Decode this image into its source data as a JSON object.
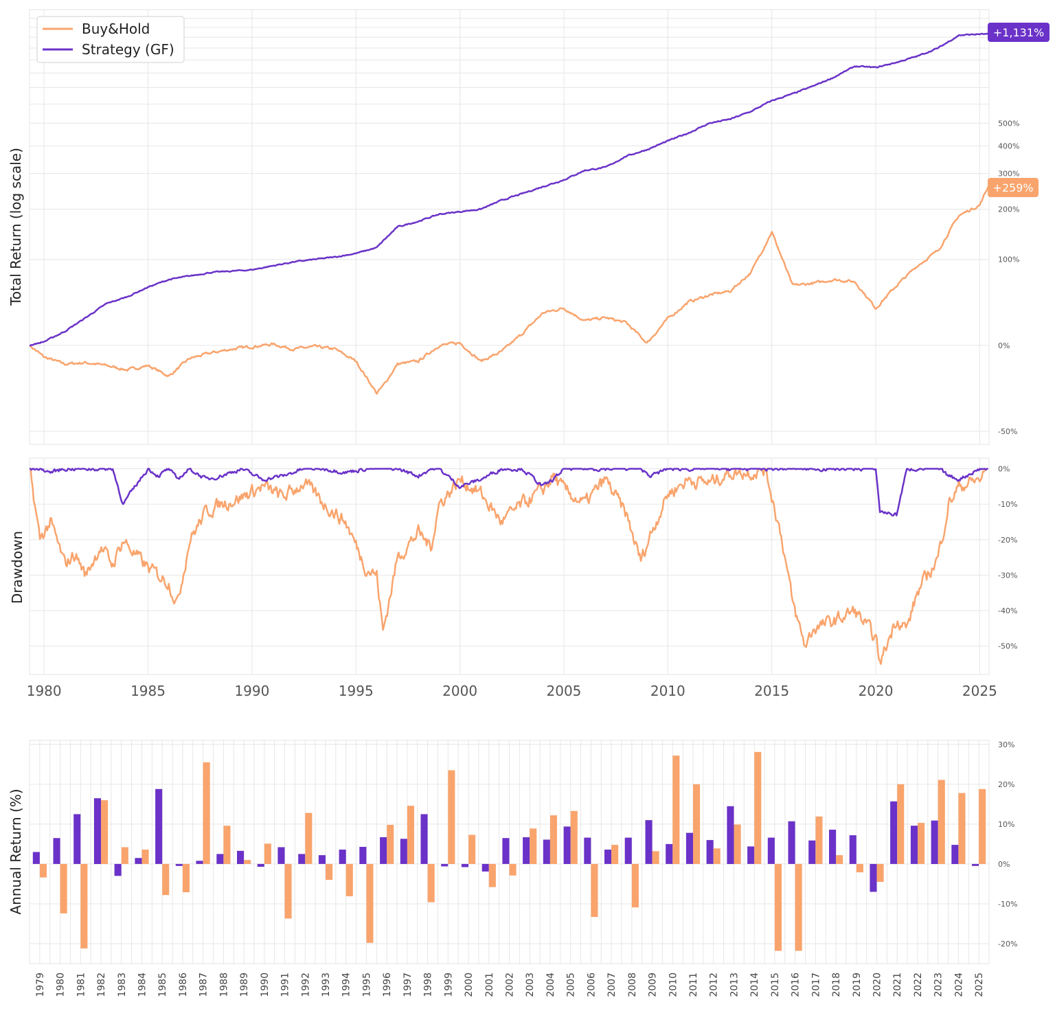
{
  "colors": {
    "buyhold": "#f9a46d",
    "strategy": "#6a32c8"
  },
  "legend": {
    "buyhold": "Buy&Hold",
    "strategy": "Strategy (GF)"
  },
  "badges": {
    "strategy": "+1,131%",
    "buyhold": "+259%"
  },
  "chart_data": [
    {
      "type": "line",
      "title": "",
      "ylabel": "Total Return (log scale)",
      "yscale": "log(1+r)",
      "ytick_values": [
        -50,
        0,
        100,
        200,
        300,
        400,
        500
      ],
      "ytick_labels": [
        "-50%",
        "0%",
        "100%",
        "200%",
        "300%",
        "400%",
        "500%"
      ],
      "ylim": [
        -50,
        1300
      ],
      "x": [
        1979.3,
        1980,
        1981,
        1982,
        1983,
        1984,
        1985,
        1986,
        1987,
        1988,
        1989,
        1990,
        1991,
        1992,
        1993,
        1994,
        1995,
        1996,
        1996.3,
        1997,
        1998,
        1999,
        2000,
        2001,
        2002,
        2003,
        2004,
        2005,
        2006,
        2007,
        2008,
        2009,
        2010,
        2011,
        2012,
        2013,
        2014,
        2015,
        2016,
        2017,
        2018,
        2019,
        2020,
        2021,
        2022,
        2023,
        2024,
        2025,
        2025.4
      ],
      "series": [
        {
          "name": "Buy&Hold",
          "values": [
            0,
            -9,
            -14,
            -13,
            -15,
            -18,
            -15,
            -22,
            -10,
            -6,
            -3,
            -1,
            1,
            -3,
            -1,
            -3,
            -12,
            -32,
            -28,
            -14,
            -12,
            0,
            2,
            -12,
            -5,
            10,
            30,
            35,
            22,
            25,
            20,
            2,
            24,
            42,
            50,
            55,
            80,
            150,
            62,
            65,
            70,
            67,
            35,
            62,
            90,
            115,
            185,
            210,
            259
          ]
        },
        {
          "name": "Strategy (GF)",
          "values": [
            0,
            3,
            12,
            25,
            40,
            48,
            60,
            70,
            75,
            80,
            82,
            84,
            90,
            96,
            100,
            104,
            110,
            120,
            132,
            160,
            172,
            188,
            194,
            200,
            222,
            240,
            260,
            280,
            310,
            320,
            360,
            385,
            420,
            455,
            500,
            520,
            560,
            620,
            660,
            710,
            770,
            850,
            840,
            880,
            930,
            1000,
            1120,
            1131,
            1131
          ]
        }
      ]
    },
    {
      "type": "line",
      "title": "",
      "ylabel": "Drawdown",
      "ytick_values": [
        0,
        -10,
        -20,
        -30,
        -40,
        -50
      ],
      "ytick_labels": [
        "0%",
        "-10%",
        "-20%",
        "-30%",
        "-40%",
        "-50%"
      ],
      "ylim": [
        -58,
        3
      ],
      "x": [
        1979.3,
        1979.8,
        1980.3,
        1981,
        1981.5,
        1982,
        1982.7,
        1983.3,
        1983.8,
        1984.5,
        1985,
        1985.5,
        1986,
        1986.4,
        1987,
        1987.8,
        1988.5,
        1989.5,
        1990.5,
        1991.5,
        1992.5,
        1993.5,
        1994.5,
        1995.5,
        1996,
        1996.3,
        1997,
        1998,
        1998.6,
        1999,
        2000,
        2001,
        2002,
        2003,
        2004,
        2004.5,
        2005,
        2006,
        2007,
        2008,
        2008.7,
        2009.2,
        2010,
        2011,
        2012,
        2013,
        2014,
        2014.7,
        2015.5,
        2016,
        2016.6,
        2017,
        2018,
        2019,
        2020,
        2020.2,
        2021,
        2021.5,
        2022,
        2023,
        2023.5,
        2024,
        2025,
        2025.4
      ],
      "series": [
        {
          "name": "Buy&Hold",
          "values": [
            0,
            -20,
            -15,
            -27,
            -24,
            -30,
            -22,
            -27,
            -20,
            -25,
            -28,
            -30,
            -32,
            -38,
            -20,
            -12,
            -10,
            -8,
            -5,
            -8,
            -4,
            -10,
            -15,
            -28,
            -30,
            -46,
            -25,
            -18,
            -22,
            -10,
            -3,
            -7,
            -15,
            -10,
            -6,
            -2,
            -6,
            -10,
            -3,
            -13,
            -26,
            -18,
            -7,
            -3,
            -4,
            -1,
            -1,
            0,
            -20,
            -38,
            -50,
            -45,
            -43,
            -40,
            -48,
            -55,
            -42,
            -45,
            -35,
            -25,
            -10,
            -5,
            -3,
            0
          ]
        },
        {
          "name": "Strategy (GF)",
          "values": [
            0,
            0,
            -1,
            0,
            0,
            0,
            0,
            0,
            -10,
            -4,
            0,
            -2,
            0,
            -3,
            0,
            -3,
            -2,
            0,
            -3,
            -2,
            0,
            0,
            -1,
            0,
            0,
            0,
            0,
            -2,
            0,
            0,
            -5,
            -3,
            0,
            0,
            -5,
            -3,
            0,
            0,
            0,
            0,
            0,
            -2,
            0,
            0,
            0,
            0,
            0,
            0,
            0,
            0,
            0,
            0,
            0,
            0,
            0,
            -12,
            -13,
            0,
            0,
            0,
            -2,
            -3,
            0,
            0
          ]
        }
      ]
    },
    {
      "type": "bar",
      "title": "",
      "ylabel": "Annual Return (%)",
      "ytick_values": [
        30,
        20,
        10,
        0,
        -10,
        -20
      ],
      "ytick_labels": [
        "30%",
        "20%",
        "10%",
        "0%",
        "-10%",
        "-20%"
      ],
      "ylim": [
        -24,
        30
      ],
      "categories": [
        "1979",
        "1980",
        "1981",
        "1982",
        "1983",
        "1984",
        "1985",
        "1986",
        "1987",
        "1988",
        "1989",
        "1990",
        "1991",
        "1992",
        "1993",
        "1994",
        "1995",
        "1996",
        "1997",
        "1998",
        "1999",
        "2000",
        "2001",
        "2002",
        "2003",
        "2004",
        "2005",
        "2006",
        "2007",
        "2008",
        "2009",
        "2010",
        "2011",
        "2012",
        "2013",
        "2014",
        "2015",
        "2016",
        "2017",
        "2018",
        "2019",
        "2020",
        "2021",
        "2022",
        "2023",
        "2024",
        "2025"
      ],
      "series": [
        {
          "name": "Strategy (GF)",
          "values": [
            3,
            6.5,
            12.5,
            16.5,
            -3,
            1.5,
            18.8,
            -0.5,
            0.8,
            2.5,
            3.3,
            -0.7,
            4.2,
            2.5,
            2.2,
            3.6,
            4.3,
            6.7,
            6.3,
            12.5,
            -0.6,
            -0.8,
            -1.9,
            6.5,
            6.7,
            6.1,
            9.4,
            6.6,
            3.6,
            6.6,
            11,
            5,
            7.8,
            6,
            14.5,
            4.4,
            6.6,
            10.7,
            5.9,
            8.6,
            7.2,
            -7,
            15.7,
            9.6,
            10.9,
            4.8,
            -0.5
          ]
        },
        {
          "name": "Buy&Hold",
          "values": [
            -3.4,
            -12.4,
            -21.2,
            16,
            4.2,
            3.6,
            -7.8,
            -7.1,
            25.5,
            9.6,
            1,
            5.1,
            -13.7,
            12.8,
            -4,
            -8.1,
            -19.8,
            9.8,
            14.6,
            -9.6,
            23.5,
            7.3,
            -5.8,
            -2.9,
            8.9,
            12.2,
            13.3,
            -13.3,
            4.8,
            -10.9,
            3.2,
            27.2,
            20,
            3.9,
            9.9,
            28.1,
            -21.8,
            -21.8,
            11.9,
            2.2,
            -2.1,
            -4.5,
            20,
            10.3,
            21.1,
            17.8,
            18.8
          ]
        }
      ]
    }
  ]
}
